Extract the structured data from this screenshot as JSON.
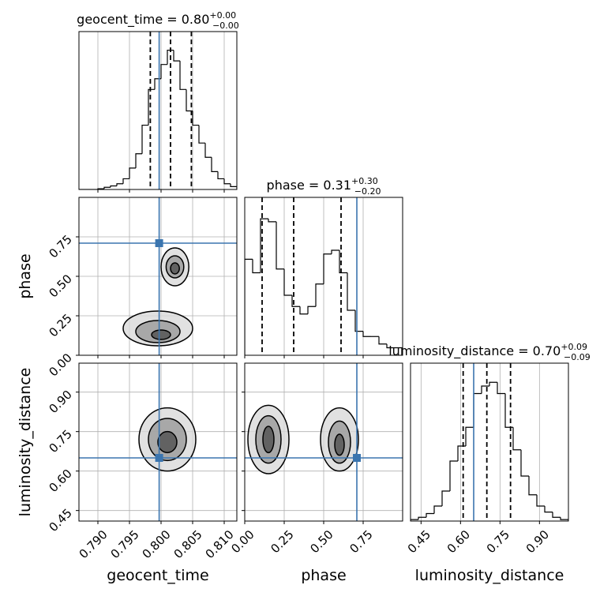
{
  "chart_data": [
    {
      "type": "histogram",
      "title": {
        "text": "geocent_time = 0.80",
        "plus": "+0.00",
        "minus": "−0.00"
      },
      "bins": [
        0.787,
        0.788,
        0.789,
        0.79,
        0.791,
        0.792,
        0.793,
        0.794,
        0.795,
        0.796,
        0.797,
        0.798,
        0.799,
        0.8,
        0.801,
        0.802,
        0.803,
        0.804,
        0.805,
        0.806,
        0.807,
        0.808,
        0.809,
        0.81,
        0.811,
        0.812
      ],
      "values": [
        0,
        0,
        0,
        1,
        3,
        5,
        8,
        15,
        30,
        50,
        90,
        140,
        155,
        175,
        195,
        180,
        140,
        110,
        90,
        65,
        45,
        25,
        15,
        8,
        4
      ],
      "quantiles": [
        0.7983,
        0.8015,
        0.8048
      ],
      "truth": 0.7997,
      "color": "#000000",
      "truth_color": "#3b75af",
      "xlim": [
        0.787,
        0.812
      ],
      "ylim": [
        0,
        210
      ],
      "xticks": [
        {
          "value": 0.79,
          "label": "0.790"
        },
        {
          "value": 0.795,
          "label": "0.795"
        },
        {
          "value": 0.8,
          "label": "0.800"
        },
        {
          "value": 0.805,
          "label": "0.805"
        },
        {
          "value": 0.81,
          "label": "0.810"
        }
      ],
      "grid": true
    },
    {
      "type": "contour",
      "ylabel": "phase",
      "xlim": [
        0.787,
        0.812
      ],
      "ylim": [
        0,
        1
      ],
      "xticks": [
        {
          "value": 0.79,
          "label": "0.790"
        },
        {
          "value": 0.795,
          "label": "0.795"
        },
        {
          "value": 0.8,
          "label": "0.800"
        },
        {
          "value": 0.805,
          "label": "0.805"
        },
        {
          "value": 0.81,
          "label": "0.810"
        }
      ],
      "yticks": [
        {
          "value": 0,
          "label": "0.00"
        },
        0.25,
        {
          "value": 0.5,
          "label": "0.50"
        },
        0.75
      ],
      "contours": [
        {
          "x": 0.8022,
          "y": 0.56,
          "rx": 0.0022,
          "ry": 0.12
        },
        {
          "x": 0.8022,
          "y": 0.56,
          "rx": 0.0014,
          "ry": 0.07
        },
        {
          "x": 0.8022,
          "y": 0.55,
          "rx": 0.0007,
          "ry": 0.035
        },
        {
          "x": 0.7995,
          "y": 0.17,
          "rx": 0.0055,
          "ry": 0.11
        },
        {
          "x": 0.7995,
          "y": 0.15,
          "rx": 0.0035,
          "ry": 0.07
        },
        {
          "x": 0.8,
          "y": 0.13,
          "rx": 0.0015,
          "ry": 0.03
        }
      ],
      "truth_x": 0.7997,
      "truth_y": 0.71,
      "truth_color": "#3b75af",
      "grid": true
    },
    {
      "type": "histogram",
      "title": {
        "text": "phase = 0.31",
        "plus": "+0.30",
        "minus": "−0.20"
      },
      "bins": [
        0,
        0.05,
        0.1,
        0.15,
        0.2,
        0.25,
        0.3,
        0.35,
        0.4,
        0.45,
        0.5,
        0.55,
        0.6,
        0.65,
        0.7,
        0.75,
        0.8,
        0.85,
        0.9,
        0.95,
        1
      ],
      "values": [
        128,
        110,
        182,
        178,
        115,
        80,
        65,
        55,
        65,
        95,
        135,
        140,
        110,
        60,
        32,
        25,
        25,
        15,
        10,
        10
      ],
      "quantiles": [
        0.11,
        0.31,
        0.61
      ],
      "truth": 0.71,
      "color": "#000000",
      "truth_color": "#3b75af",
      "xlim": [
        0,
        1
      ],
      "ylim": [
        0,
        200
      ],
      "xticks": [
        {
          "value": 0,
          "label": "0.00"
        },
        0.25,
        {
          "value": 0.5,
          "label": "0.50"
        },
        0.75
      ],
      "grid": true
    },
    {
      "type": "contour",
      "xlabel": "geocent_time",
      "ylabel": "luminosity_distance",
      "xlim": [
        0.787,
        0.812
      ],
      "ylim": [
        0.41,
        1.01
      ],
      "xticks": [
        {
          "value": 0.79,
          "label": "0.790"
        },
        {
          "value": 0.795,
          "label": "0.795"
        },
        {
          "value": 0.8,
          "label": "0.800"
        },
        {
          "value": 0.805,
          "label": "0.805"
        },
        {
          "value": 0.81,
          "label": "0.810"
        }
      ],
      "yticks": [
        0.45,
        {
          "value": 0.6,
          "label": "0.60"
        },
        0.75,
        {
          "value": 0.9,
          "label": "0.90"
        }
      ],
      "contours": [
        {
          "x": 0.801,
          "y": 0.72,
          "rx": 0.0045,
          "ry": 0.12
        },
        {
          "x": 0.801,
          "y": 0.72,
          "rx": 0.003,
          "ry": 0.08
        },
        {
          "x": 0.801,
          "y": 0.71,
          "rx": 0.0015,
          "ry": 0.04
        }
      ],
      "truth_x": 0.7997,
      "truth_y": 0.65,
      "truth_color": "#3b75af",
      "grid": true
    },
    {
      "type": "contour",
      "xlabel": "phase",
      "xlim": [
        0,
        1
      ],
      "ylim": [
        0.41,
        1.01
      ],
      "xticks": [
        {
          "value": 0,
          "label": "0.00"
        },
        0.25,
        {
          "value": 0.5,
          "label": "0.50"
        },
        0.75
      ],
      "yticks": [
        0.45,
        {
          "value": 0.6,
          "label": "0.60"
        },
        0.75,
        {
          "value": 0.9,
          "label": "0.90"
        }
      ],
      "contours": [
        {
          "x": 0.15,
          "y": 0.72,
          "rx": 0.13,
          "ry": 0.13
        },
        {
          "x": 0.15,
          "y": 0.72,
          "rx": 0.08,
          "ry": 0.09
        },
        {
          "x": 0.15,
          "y": 0.72,
          "rx": 0.035,
          "ry": 0.05
        },
        {
          "x": 0.6,
          "y": 0.72,
          "rx": 0.12,
          "ry": 0.12
        },
        {
          "x": 0.6,
          "y": 0.71,
          "rx": 0.07,
          "ry": 0.08
        },
        {
          "x": 0.6,
          "y": 0.7,
          "rx": 0.03,
          "ry": 0.04
        }
      ],
      "truth_x": 0.71,
      "truth_y": 0.65,
      "truth_color": "#3b75af",
      "grid": true
    },
    {
      "type": "histogram",
      "xlabel": "luminosity_distance",
      "title": {
        "text": "luminosity_distance = 0.70",
        "plus": "+0.09",
        "minus": "−0.09"
      },
      "bins": [
        0.41,
        0.44,
        0.47,
        0.5,
        0.53,
        0.56,
        0.59,
        0.62,
        0.65,
        0.68,
        0.71,
        0.74,
        0.77,
        0.8,
        0.83,
        0.86,
        0.89,
        0.92,
        0.95,
        0.98,
        1.01
      ],
      "values": [
        2,
        5,
        10,
        20,
        40,
        80,
        100,
        125,
        170,
        180,
        185,
        170,
        125,
        95,
        60,
        35,
        20,
        12,
        5,
        2
      ],
      "quantiles": [
        0.61,
        0.7,
        0.79
      ],
      "truth": 0.65,
      "color": "#000000",
      "truth_color": "#3b75af",
      "xlim": [
        0.41,
        1.01
      ],
      "ylim": [
        0,
        200
      ],
      "xticks": [
        0.45,
        {
          "value": 0.6,
          "label": "0.60"
        },
        0.75,
        {
          "value": 0.9,
          "label": "0.90"
        }
      ],
      "grid": true
    }
  ]
}
